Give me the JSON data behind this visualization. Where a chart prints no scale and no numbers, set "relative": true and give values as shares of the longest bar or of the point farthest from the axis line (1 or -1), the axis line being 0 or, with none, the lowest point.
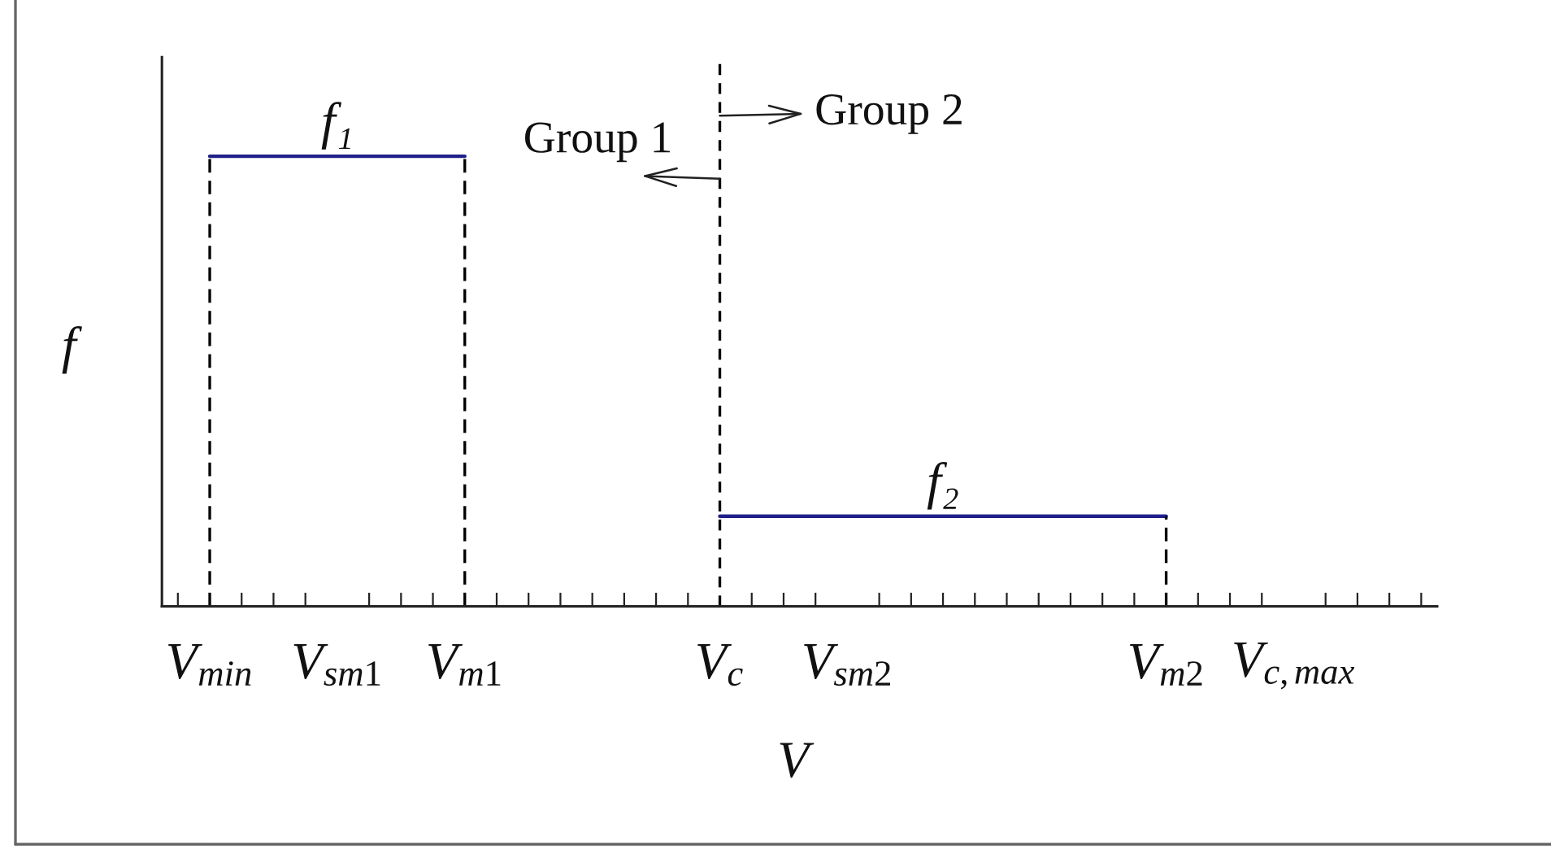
{
  "chart_data": {
    "type": "line",
    "xlabel": "V",
    "ylabel": "f",
    "relative": true,
    "categories": [
      null,
      "V$_{min}$",
      null,
      null,
      null,
      "V$_{sm1}$",
      null,
      null,
      null,
      "V$_{m1}$",
      null,
      null,
      null,
      null,
      null,
      null,
      null,
      "V$_{c}$",
      null,
      null,
      null,
      "V$_{sm2}$",
      null,
      null,
      null,
      null,
      null,
      null,
      null,
      null,
      null,
      "V$_{m2}$",
      null,
      null,
      null,
      "V$_{c,max}$",
      null,
      null,
      null,
      null
    ],
    "series": [
      {
        "name": "f₁",
        "color": "#20208a",
        "x": [
          "V$_{min}$",
          "V$_{m1}$"
        ],
        "values": [
          1,
          1
        ]
      },
      {
        "name": "f₂",
        "color": "#20208a",
        "x": [
          "V$_{c}$",
          "V$_{m2}$"
        ],
        "values": [
          0.2,
          0.2
        ]
      },
      {
        "color": "#000000",
        "line_style": "dashed",
        "x": [
          "V$_{min}$",
          "V$_{min}$"
        ],
        "values": [
          0,
          1
        ]
      },
      {
        "color": "#000000",
        "line_style": "dashed",
        "x": [
          "V$_{m1}$",
          "V$_{m1}$"
        ],
        "values": [
          0,
          1
        ]
      },
      {
        "color": "#000000",
        "line_style": "dashed",
        "x": [
          "V$_{m2}$",
          "V$_{m2}$"
        ],
        "values": [
          0,
          0.2
        ]
      }
    ],
    "ref_lines": [
      {
        "axis": "x",
        "value": "V$_{c}$",
        "color": "#000000",
        "line_style": "dashed"
      }
    ],
    "annotations": [
      {
        "text": "Group 1",
        "x": "V$_{c}$",
        "y": 0.95
      },
      {
        "text": "Group 2",
        "x": "V$_{c}$",
        "y": 1.09
      }
    ],
    "marker": "none"
  }
}
